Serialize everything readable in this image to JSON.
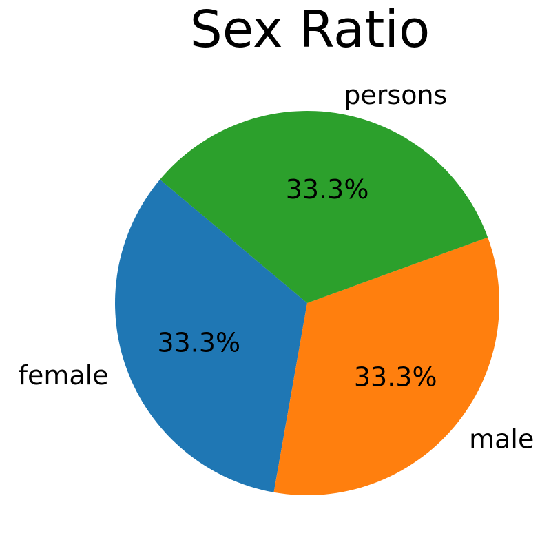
{
  "chart_data": {
    "type": "pie",
    "title": "Sex Ratio",
    "categories": [
      "female",
      "male",
      "persons"
    ],
    "values": [
      33.3,
      33.3,
      33.3
    ],
    "value_labels": [
      "33.3%",
      "33.3%",
      "33.3%"
    ],
    "colors": [
      "#1f77b4",
      "#ff7f0e",
      "#2ca02c"
    ],
    "start_angle_deg": 140,
    "direction": "counterclockwise",
    "legend": "none"
  }
}
